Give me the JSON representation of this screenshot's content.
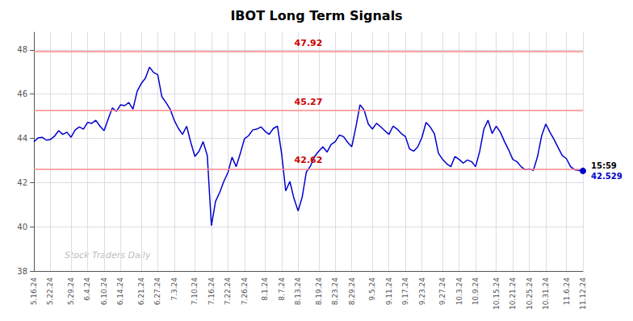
{
  "chart_data": {
    "type": "line",
    "title": "IBOT Long Term Signals",
    "watermark": "Stock Traders Daily",
    "color": "#0000cc",
    "grid": true,
    "ylim": [
      38,
      48.8
    ],
    "yticks": [
      38,
      40,
      42,
      44,
      46,
      48
    ],
    "hlines": [
      {
        "value": 47.92,
        "label": "47.92",
        "color": "#ff8888",
        "label_color": "#cc0000"
      },
      {
        "value": 45.27,
        "label": "45.27",
        "color": "#ff8888",
        "label_color": "#cc0000"
      },
      {
        "value": 42.62,
        "label": "42.62",
        "color": "#ff8888",
        "label_color": "#cc0000"
      }
    ],
    "last_point": {
      "time": "15:59",
      "value": 42.529,
      "value_label": "42.529"
    },
    "categories": [
      "5.16.24",
      null,
      null,
      null,
      "5.22.24",
      null,
      null,
      null,
      null,
      "5.29.24",
      null,
      null,
      null,
      "6.4.24",
      null,
      null,
      null,
      "6.10.24",
      null,
      null,
      null,
      "6.14.24",
      null,
      null,
      null,
      null,
      "6.21.24",
      null,
      null,
      null,
      "6.27.24",
      null,
      null,
      null,
      "7.3.24",
      null,
      null,
      null,
      null,
      "7.10.24",
      null,
      null,
      null,
      "7.16.24",
      null,
      null,
      null,
      "7.22.24",
      null,
      null,
      null,
      "7.26.24",
      null,
      null,
      null,
      null,
      "8.1.24",
      null,
      null,
      null,
      "8.7.24",
      null,
      null,
      null,
      "8.13.24",
      null,
      null,
      null,
      null,
      "8.19.24",
      null,
      null,
      null,
      "8.23.24",
      null,
      null,
      null,
      "8.29.24",
      null,
      null,
      null,
      null,
      "9.5.24",
      null,
      null,
      null,
      "9.11.24",
      null,
      null,
      null,
      "9.17.24",
      null,
      null,
      null,
      "9.23.24",
      null,
      null,
      null,
      null,
      "9.27.24",
      null,
      null,
      null,
      "10.3.24",
      null,
      null,
      null,
      "10.9.24",
      null,
      null,
      null,
      null,
      "10.15.24",
      null,
      null,
      null,
      "10.21.24",
      null,
      null,
      null,
      "10.25.24",
      null,
      null,
      null,
      "10.31.24",
      null,
      null,
      null,
      null,
      "11.6.24",
      null,
      null,
      null,
      "11.12.24"
    ],
    "values": [
      43.85,
      44.02,
      44.05,
      43.92,
      43.95,
      44.1,
      44.35,
      44.18,
      44.28,
      44.05,
      44.38,
      44.52,
      44.42,
      44.72,
      44.68,
      44.82,
      44.55,
      44.35,
      44.88,
      45.38,
      45.22,
      45.52,
      45.48,
      45.62,
      45.32,
      46.12,
      46.48,
      46.72,
      47.22,
      46.98,
      46.88,
      45.88,
      45.62,
      45.32,
      44.82,
      44.45,
      44.18,
      44.55,
      43.82,
      43.18,
      43.42,
      43.85,
      43.22,
      40.05,
      41.15,
      41.55,
      42.05,
      42.45,
      43.15,
      42.72,
      43.32,
      43.98,
      44.12,
      44.38,
      44.42,
      44.52,
      44.32,
      44.18,
      44.45,
      44.55,
      43.32,
      41.62,
      42.05,
      41.28,
      40.72,
      41.35,
      42.48,
      42.75,
      43.18,
      43.42,
      43.62,
      43.38,
      43.72,
      43.85,
      44.15,
      44.08,
      43.82,
      43.62,
      44.52,
      45.52,
      45.28,
      44.65,
      44.42,
      44.68,
      44.52,
      44.35,
      44.18,
      44.55,
      44.42,
      44.22,
      44.08,
      43.52,
      43.42,
      43.62,
      44.05,
      44.72,
      44.52,
      44.22,
      43.32,
      43.05,
      42.85,
      42.72,
      43.18,
      43.05,
      42.88,
      43.02,
      42.95,
      42.72,
      43.42,
      44.42,
      44.82,
      44.22,
      44.55,
      44.28,
      43.85,
      43.48,
      43.05,
      42.95,
      42.72,
      42.58,
      42.62,
      42.55,
      43.18,
      44.12,
      44.65,
      44.28,
      43.95,
      43.58,
      43.22,
      43.08,
      42.72,
      42.58,
      42.55,
      42.529
    ]
  }
}
